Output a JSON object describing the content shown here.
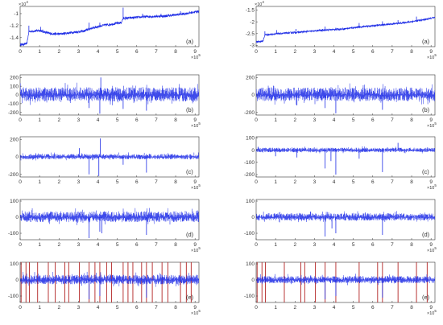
{
  "chart_data": [
    {
      "id": "left-a",
      "type": "line",
      "label": "(a)",
      "x_exponent": "×10",
      "x_exponent_power": "5",
      "y_exponent": "×10",
      "y_exponent_power": "4",
      "xlim": [
        0,
        9.2
      ],
      "ylim": [
        -1.55,
        -0.88
      ],
      "xticks": [
        "0",
        "1",
        "2",
        "3",
        "4",
        "5",
        "6",
        "7",
        "8",
        "9"
      ],
      "yticks": [
        {
          "v": -1,
          "t": "-1"
        },
        {
          "v": -1.2,
          "t": "-1.2"
        },
        {
          "v": -1.4,
          "t": "-1.4"
        }
      ],
      "trend": [
        [
          0,
          -1.52
        ],
        [
          0.35,
          -1.5
        ],
        [
          0.45,
          -1.3
        ],
        [
          1.0,
          -1.28
        ],
        [
          1.5,
          -1.33
        ],
        [
          2.0,
          -1.34
        ],
        [
          2.5,
          -1.32
        ],
        [
          3.3,
          -1.29
        ],
        [
          3.6,
          -1.25
        ],
        [
          4.2,
          -1.2
        ],
        [
          5.2,
          -1.15
        ],
        [
          5.3,
          -1.08
        ],
        [
          6.5,
          -1.05
        ],
        [
          7.5,
          -1.04
        ],
        [
          8.5,
          -1.0
        ],
        [
          9.2,
          -0.96
        ]
      ],
      "spikes": [
        [
          0.45,
          -1.2
        ],
        [
          1.05,
          -1.22
        ],
        [
          3.55,
          -1.15
        ],
        [
          4.1,
          -1.15
        ],
        [
          5.3,
          -0.9
        ],
        [
          6.3,
          -1.0
        ],
        [
          7.25,
          -1.0
        ],
        [
          8.25,
          -0.96
        ]
      ],
      "noise": 0.02
    },
    {
      "id": "right-a",
      "type": "line",
      "label": "(a)",
      "x_exponent": "×10",
      "x_exponent_power": "5",
      "y_exponent": "×10",
      "y_exponent_power": "4",
      "xlim": [
        0,
        9.2
      ],
      "ylim": [
        -3.05,
        -1.35
      ],
      "xticks": [
        "0",
        "1",
        "2",
        "3",
        "4",
        "5",
        "6",
        "7",
        "8",
        "9"
      ],
      "yticks": [
        {
          "v": -1.5,
          "t": "-1.5"
        },
        {
          "v": -2,
          "t": "-2"
        },
        {
          "v": -2.5,
          "t": "-2.5"
        },
        {
          "v": -3,
          "t": "-3"
        }
      ],
      "trend": [
        [
          0,
          -2.85
        ],
        [
          0.35,
          -2.82
        ],
        [
          0.45,
          -2.55
        ],
        [
          1.5,
          -2.48
        ],
        [
          2.5,
          -2.42
        ],
        [
          3.5,
          -2.35
        ],
        [
          4.5,
          -2.3
        ],
        [
          5.3,
          -2.22
        ],
        [
          6.5,
          -2.13
        ],
        [
          7.5,
          -2.05
        ],
        [
          8.5,
          -1.93
        ],
        [
          9.2,
          -1.82
        ]
      ],
      "spikes": [
        [
          0.45,
          -2.4
        ],
        [
          1.05,
          -2.35
        ],
        [
          2.05,
          -2.3
        ],
        [
          3.55,
          -2.2
        ],
        [
          4.1,
          -2.25
        ],
        [
          5.3,
          -2.05
        ],
        [
          6.5,
          -1.98
        ],
        [
          7.3,
          -1.93
        ],
        [
          8.25,
          -1.78
        ]
      ],
      "noise": 0.035
    },
    {
      "id": "left-b",
      "type": "line",
      "label": "(b)",
      "x_exponent": "×10",
      "x_exponent_power": "5",
      "xlim": [
        0,
        9.2
      ],
      "ylim": [
        -230,
        230
      ],
      "xticks": [
        "0",
        "1",
        "2",
        "3",
        "4",
        "5",
        "6",
        "7",
        "8",
        "9"
      ],
      "yticks": [
        {
          "v": 200,
          "t": "200"
        },
        {
          "v": 100,
          "t": "100"
        },
        {
          "v": 0,
          "t": "0"
        },
        {
          "v": -100,
          "t": "-100"
        },
        {
          "v": -200,
          "t": "-200"
        }
      ],
      "amp": 110,
      "trend": [],
      "spikes": [
        [
          4.1,
          -215
        ],
        [
          4.15,
          200
        ],
        [
          3.55,
          -150
        ],
        [
          6.5,
          -180
        ],
        [
          5.3,
          -160
        ]
      ],
      "noise": 0
    },
    {
      "id": "right-b",
      "type": "line",
      "label": "(b)",
      "x_exponent": "×10",
      "x_exponent_power": "5",
      "xlim": [
        0,
        9.2
      ],
      "ylim": [
        -230,
        230
      ],
      "xticks": [
        "0",
        "1",
        "2",
        "3",
        "4",
        "5",
        "6",
        "7",
        "8",
        "9"
      ],
      "yticks": [
        {
          "v": 200,
          "t": "200"
        },
        {
          "v": 0,
          "t": "0"
        },
        {
          "v": -200,
          "t": "-200"
        }
      ],
      "amp": 105,
      "trend": [],
      "spikes": [
        [
          4.1,
          -210
        ],
        [
          3.55,
          -150
        ],
        [
          6.5,
          -170
        ],
        [
          2.1,
          -120
        ]
      ],
      "noise": 0
    },
    {
      "id": "left-c",
      "type": "line",
      "label": "(c)",
      "x_exponent": "×10",
      "x_exponent_power": "5",
      "xlim": [
        0,
        9.2
      ],
      "ylim": [
        -230,
        230
      ],
      "xticks": [
        "0",
        "1",
        "2",
        "3",
        "4",
        "5",
        "6",
        "7",
        "8",
        "9"
      ],
      "yticks": [
        {
          "v": 200,
          "t": "200"
        },
        {
          "v": 0,
          "t": "0"
        },
        {
          "v": -200,
          "t": "-200"
        }
      ],
      "amp": 40,
      "trend": [],
      "spikes": [
        [
          4.05,
          -220
        ],
        [
          4.12,
          210
        ],
        [
          3.55,
          -200
        ],
        [
          6.5,
          -180
        ],
        [
          3.05,
          100
        ],
        [
          5.3,
          -90
        ]
      ],
      "noise": 0
    },
    {
      "id": "right-c",
      "type": "line",
      "label": "(c)",
      "x_exponent": "×10",
      "x_exponent_power": "5",
      "xlim": [
        0,
        9.2
      ],
      "ylim": [
        -220,
        110
      ],
      "xticks": [
        "0",
        "1",
        "2",
        "3",
        "4",
        "5",
        "6",
        "7",
        "8",
        "9"
      ],
      "yticks": [
        {
          "v": 100,
          "t": "100"
        },
        {
          "v": 0,
          "t": "0"
        },
        {
          "v": -100,
          "t": "-100"
        },
        {
          "v": -200,
          "t": "-200"
        }
      ],
      "amp": 25,
      "trend": [],
      "spikes": [
        [
          3.55,
          -150
        ],
        [
          4.1,
          -200
        ],
        [
          6.5,
          -180
        ],
        [
          3.85,
          -90
        ],
        [
          5.3,
          -70
        ],
        [
          2.1,
          -60
        ],
        [
          1.0,
          -50
        ],
        [
          7.3,
          60
        ]
      ],
      "noise": 0
    },
    {
      "id": "left-d",
      "type": "line",
      "label": "(d)",
      "x_exponent": "×10",
      "x_exponent_power": "5",
      "xlim": [
        0,
        9.2
      ],
      "ylim": [
        -140,
        110
      ],
      "xticks": [
        "0",
        "1",
        "2",
        "3",
        "4",
        "5",
        "6",
        "7",
        "8",
        "9"
      ],
      "yticks": [
        {
          "v": 100,
          "t": "100"
        },
        {
          "v": 0,
          "t": "0"
        },
        {
          "v": -100,
          "t": "-100"
        }
      ],
      "amp": 45,
      "trend": [],
      "spikes": [
        [
          3.55,
          -130
        ],
        [
          4.1,
          -90
        ],
        [
          6.5,
          -110
        ],
        [
          4.2,
          -100
        ]
      ],
      "noise": 0
    },
    {
      "id": "right-d",
      "type": "line",
      "label": "(d)",
      "x_exponent": "×10",
      "x_exponent_power": "5",
      "xlim": [
        0,
        9.2
      ],
      "ylim": [
        -140,
        110
      ],
      "xticks": [
        "0",
        "1",
        "2",
        "3",
        "4",
        "5",
        "6",
        "7",
        "8",
        "9"
      ],
      "yticks": [
        {
          "v": 100,
          "t": "100"
        },
        {
          "v": 0,
          "t": "0"
        },
        {
          "v": -100,
          "t": "-100"
        }
      ],
      "amp": 30,
      "trend": [],
      "spikes": [
        [
          3.55,
          -120
        ],
        [
          4.1,
          -100
        ],
        [
          6.5,
          -110
        ],
        [
          3.9,
          -70
        ]
      ],
      "noise": 0
    },
    {
      "id": "left-e",
      "type": "line",
      "label": "(e)",
      "x_exponent": "×10",
      "x_exponent_power": "5",
      "xlim": [
        0,
        9.2
      ],
      "ylim": [
        -140,
        110
      ],
      "xticks": [
        "0",
        "1",
        "2",
        "3",
        "4",
        "5",
        "6",
        "7",
        "8",
        "9"
      ],
      "yticks": [
        {
          "v": 100,
          "t": "100"
        },
        {
          "v": 0,
          "t": "0"
        },
        {
          "v": -100,
          "t": "-100"
        }
      ],
      "amp": 40,
      "trend": [],
      "spikes": [
        [
          3.55,
          -120
        ],
        [
          4.1,
          -100
        ],
        [
          6.5,
          -110
        ]
      ],
      "noise": 0,
      "vlines": [
        0.05,
        0.3,
        0.48,
        0.9,
        1.45,
        1.8,
        2.3,
        2.5,
        3.05,
        3.55,
        3.85,
        4.1,
        4.45,
        4.7,
        5.3,
        5.55,
        5.8,
        6.25,
        6.5,
        6.8,
        7.3,
        7.6,
        8.25,
        8.55,
        8.8
      ]
    },
    {
      "id": "right-e",
      "type": "line",
      "label": "(e)",
      "x_exponent": "×10",
      "x_exponent_power": "5",
      "xlim": [
        0,
        9.2
      ],
      "ylim": [
        -140,
        110
      ],
      "xticks": [
        "0",
        "1",
        "2",
        "3",
        "4",
        "5",
        "6",
        "7",
        "8",
        "9"
      ],
      "yticks": [
        {
          "v": 100,
          "t": "100"
        },
        {
          "v": 0,
          "t": "0"
        },
        {
          "v": -100,
          "t": "-100"
        }
      ],
      "amp": 30,
      "trend": [],
      "spikes": [
        [
          3.55,
          -120
        ],
        [
          4.1,
          -100
        ],
        [
          6.5,
          -110
        ]
      ],
      "noise": 0,
      "vlines": [
        0.05,
        0.3,
        0.48,
        1.45,
        2.3,
        2.5,
        3.05,
        3.55,
        4.1,
        5.3,
        6.25,
        6.5,
        7.3,
        8.25,
        8.8
      ]
    }
  ],
  "colors": {
    "signal": "#1f2ee6",
    "vline": "#b22222",
    "axis": "#333333"
  }
}
